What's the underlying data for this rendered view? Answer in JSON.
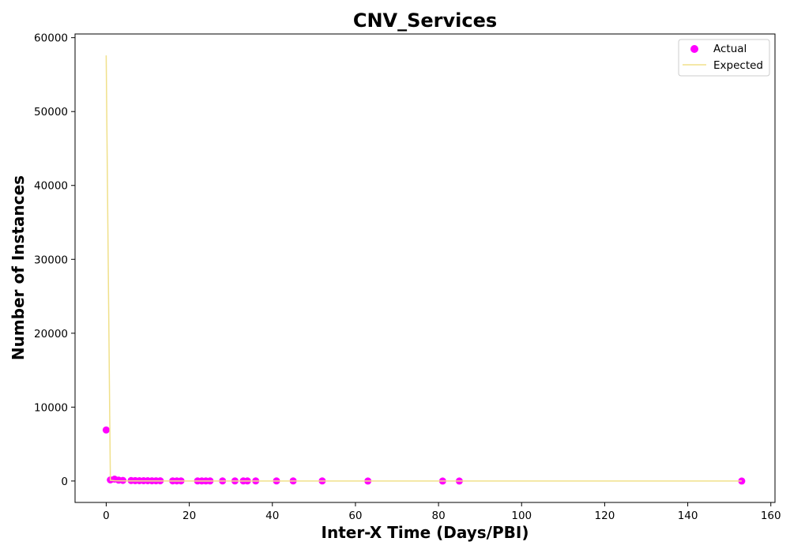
{
  "chart_data": {
    "type": "scatter",
    "title": "CNV_Services",
    "xlabel": "Inter-X Time (Days/PBI)",
    "ylabel": "Number of Instances",
    "xlim": [
      -7.5,
      161
    ],
    "ylim": [
      -2900,
      60500
    ],
    "xticks": [
      0,
      20,
      40,
      60,
      80,
      100,
      120,
      140,
      160
    ],
    "yticks": [
      0,
      10000,
      20000,
      30000,
      40000,
      50000,
      60000
    ],
    "grid": false,
    "legend_position": "top-right",
    "colors": {
      "actual": "#ff00ff",
      "expected": "#f0e08a"
    },
    "series": [
      {
        "name": "Actual",
        "kind": "scatter",
        "points": [
          [
            0,
            6900
          ],
          [
            1,
            150
          ],
          [
            2,
            250
          ],
          [
            3,
            120
          ],
          [
            4,
            80
          ],
          [
            6,
            60
          ],
          [
            7,
            50
          ],
          [
            8,
            45
          ],
          [
            9,
            40
          ],
          [
            10,
            35
          ],
          [
            11,
            30
          ],
          [
            12,
            28
          ],
          [
            13,
            25
          ],
          [
            16,
            20
          ],
          [
            17,
            18
          ],
          [
            18,
            15
          ],
          [
            22,
            12
          ],
          [
            23,
            10
          ],
          [
            24,
            10
          ],
          [
            25,
            8
          ],
          [
            28,
            7
          ],
          [
            31,
            6
          ],
          [
            33,
            5
          ],
          [
            34,
            5
          ],
          [
            36,
            4
          ],
          [
            41,
            4
          ],
          [
            45,
            3
          ],
          [
            52,
            3
          ],
          [
            63,
            2
          ],
          [
            81,
            2
          ],
          [
            85,
            1
          ],
          [
            153,
            1
          ]
        ]
      },
      {
        "name": "Expected",
        "kind": "line",
        "points": [
          [
            0,
            57600
          ],
          [
            1,
            100
          ],
          [
            2,
            40
          ],
          [
            5,
            10
          ],
          [
            20,
            2
          ],
          [
            153,
            0
          ]
        ]
      }
    ]
  }
}
